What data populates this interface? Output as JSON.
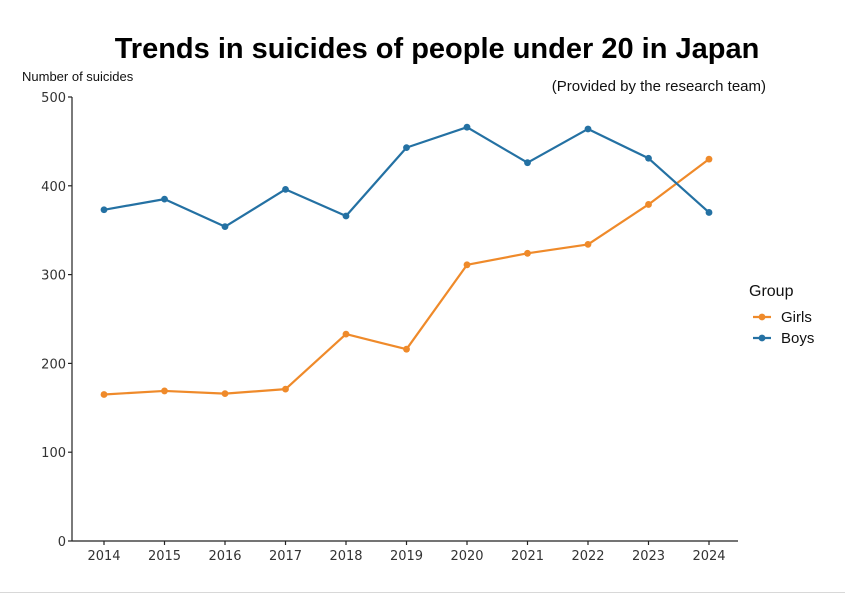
{
  "chart_data": {
    "type": "line",
    "title": "Trends in suicides of people under 20 in Japan",
    "subtitle": "(Provided by the research team)",
    "xlabel": "",
    "ylabel": "Number of suicides",
    "ylim": [
      0,
      500
    ],
    "yticks": [
      0,
      100,
      200,
      300,
      400,
      500
    ],
    "categories": [
      "2014",
      "2015",
      "2016",
      "2017",
      "2018",
      "2019",
      "2020",
      "2021",
      "2022",
      "2023",
      "2024"
    ],
    "legend": {
      "title": "Group",
      "position": "right"
    },
    "series": [
      {
        "name": "Girls",
        "color": "#ef8a2a",
        "values": [
          165,
          169,
          166,
          171,
          233,
          216,
          311,
          324,
          334,
          379,
          430
        ]
      },
      {
        "name": "Boys",
        "color": "#2471a3",
        "values": [
          373,
          385,
          354,
          396,
          366,
          443,
          466,
          426,
          464,
          431,
          370
        ]
      }
    ]
  }
}
